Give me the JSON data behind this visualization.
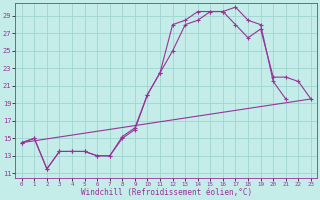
{
  "title": "",
  "xlabel": "Windchill (Refroidissement éolien,°C)",
  "ylabel": "",
  "bg_color": "#c4ece8",
  "grid_color": "#a0d4d0",
  "line_color": "#993399",
  "xlim": [
    -0.5,
    23.5
  ],
  "ylim": [
    10.5,
    30.5
  ],
  "xticks": [
    0,
    1,
    2,
    3,
    4,
    5,
    6,
    7,
    8,
    9,
    10,
    11,
    12,
    13,
    14,
    15,
    16,
    17,
    18,
    19,
    20,
    21,
    22,
    23
  ],
  "yticks": [
    11,
    13,
    15,
    17,
    19,
    21,
    23,
    25,
    27,
    29
  ],
  "series1_x": [
    0,
    1,
    2,
    3,
    4,
    5,
    6,
    7,
    8,
    9,
    10,
    11,
    12,
    13,
    14,
    15,
    16,
    17,
    18,
    19,
    20,
    21
  ],
  "series1_y": [
    14.5,
    15.0,
    11.5,
    13.5,
    13.5,
    13.5,
    13.0,
    13.0,
    15.0,
    16.0,
    20.0,
    22.5,
    28.0,
    28.5,
    29.5,
    29.5,
    29.5,
    30.0,
    28.5,
    28.0,
    21.5,
    19.5
  ],
  "series2_x": [
    0,
    1,
    2,
    3,
    4,
    5,
    6,
    7,
    8,
    9,
    10,
    11,
    12,
    13,
    14,
    15,
    16,
    17,
    18,
    19,
    20,
    21,
    22,
    23
  ],
  "series2_y": [
    14.5,
    15.0,
    11.5,
    13.5,
    13.5,
    13.5,
    13.0,
    13.0,
    15.2,
    16.2,
    20.0,
    22.5,
    25.0,
    28.0,
    28.5,
    29.5,
    29.5,
    28.0,
    26.5,
    27.5,
    22.0,
    22.0,
    21.5,
    19.5
  ],
  "series3_x": [
    0,
    23
  ],
  "series3_y": [
    14.5,
    19.5
  ],
  "xtick_fontsize": 4.2,
  "ytick_fontsize": 5.0,
  "xlabel_fontsize": 5.5
}
